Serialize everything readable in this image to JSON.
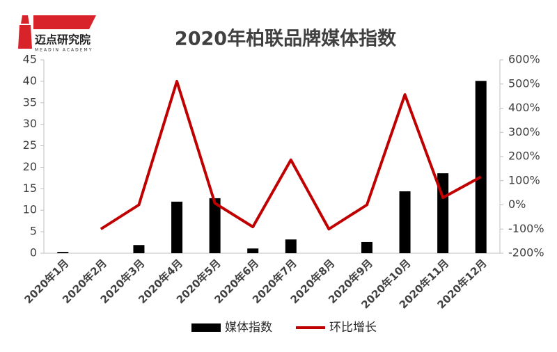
{
  "brand": {
    "name": "迈点研究院",
    "subtitle": "MEADIN ACADEMY"
  },
  "chart_data": {
    "type": "bar-line",
    "title": "2020年柏联品牌媒体指数",
    "categories": [
      "2020年1月",
      "2020年2月",
      "2020年3月",
      "2020年4月",
      "2020年5月",
      "2020年6月",
      "2020年7月",
      "2020年8月",
      "2020年9月",
      "2020年10月",
      "2020年11月",
      "2020年12月"
    ],
    "series": [
      {
        "name": "媒体指数",
        "type": "bar",
        "color": "#000000",
        "values": [
          0.3,
          0,
          1.9,
          12.0,
          12.8,
          1.1,
          3.2,
          0,
          2.6,
          14.4,
          18.6,
          40.1
        ]
      },
      {
        "name": "环比增长",
        "type": "line",
        "axis": "y2",
        "color": "#c00000",
        "values": [
          null,
          -100,
          0,
          511,
          7,
          -91,
          186,
          -100,
          0,
          456,
          30,
          116
        ]
      }
    ],
    "ylim": [
      0,
      45
    ],
    "yticks": [
      0,
      5,
      10,
      15,
      20,
      25,
      30,
      35,
      40,
      45
    ],
    "y2lim": [
      -200,
      600
    ],
    "y2ticks": [
      {
        "value": -200,
        "label": "-200%"
      },
      {
        "value": -100,
        "label": "-100%"
      },
      {
        "value": 0,
        "label": "0%"
      },
      {
        "value": 100,
        "label": "100%"
      },
      {
        "value": 200,
        "label": "200%"
      },
      {
        "value": 300,
        "label": "300%"
      },
      {
        "value": 400,
        "label": "400%"
      },
      {
        "value": 500,
        "label": "500%"
      },
      {
        "value": 600,
        "label": "600%"
      }
    ],
    "grid": false,
    "legend": "bottom"
  }
}
